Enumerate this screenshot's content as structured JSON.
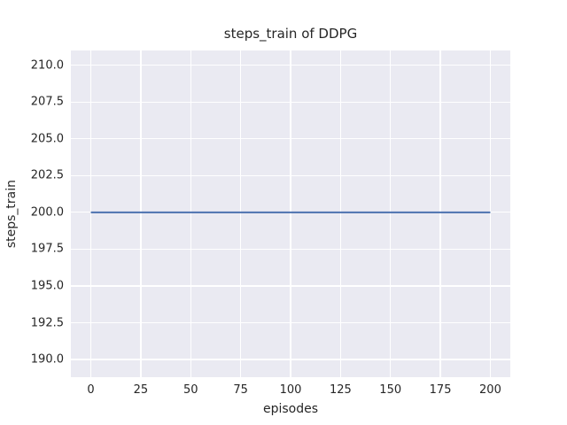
{
  "figure": {
    "background": "#ffffff",
    "text_color": "#262626"
  },
  "chart_data": {
    "type": "line",
    "title": "steps_train of DDPG",
    "xlabel": "episodes",
    "ylabel": "steps_train",
    "xlim": [
      -10,
      210
    ],
    "ylim": [
      188.8,
      211.0
    ],
    "grid": true,
    "legend": false,
    "plot_bg": "#eaeaf2",
    "grid_color": "#ffffff",
    "x_ticks": [
      {
        "value": 0,
        "label": "0"
      },
      {
        "value": 25,
        "label": "25"
      },
      {
        "value": 50,
        "label": "50"
      },
      {
        "value": 75,
        "label": "75"
      },
      {
        "value": 100,
        "label": "100"
      },
      {
        "value": 125,
        "label": "125"
      },
      {
        "value": 150,
        "label": "150"
      },
      {
        "value": 175,
        "label": "175"
      },
      {
        "value": 200,
        "label": "200"
      }
    ],
    "y_ticks": [
      {
        "value": 190.0,
        "label": "190.0"
      },
      {
        "value": 192.5,
        "label": "192.5"
      },
      {
        "value": 195.0,
        "label": "195.0"
      },
      {
        "value": 197.5,
        "label": "197.5"
      },
      {
        "value": 200.0,
        "label": "200.0"
      },
      {
        "value": 202.5,
        "label": "202.5"
      },
      {
        "value": 205.0,
        "label": "205.0"
      },
      {
        "value": 207.5,
        "label": "207.5"
      },
      {
        "value": 210.0,
        "label": "210.0"
      }
    ],
    "series": [
      {
        "name": "steps_train",
        "color": "#4c72b0",
        "line_width": 2,
        "x": [
          0,
          200
        ],
        "y": [
          200,
          200
        ]
      }
    ]
  }
}
